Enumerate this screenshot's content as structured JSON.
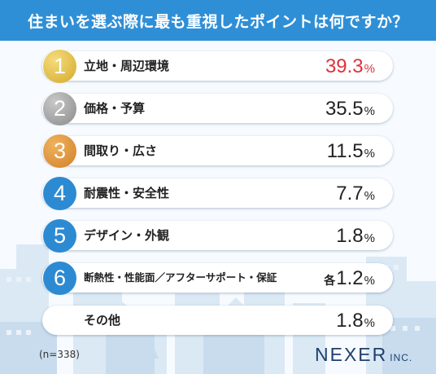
{
  "title": "住まいを選ぶ際に最も重視したポイントは何ですか？",
  "note": "(n=338)",
  "logo": {
    "main": "NEXER",
    "sub": "INC."
  },
  "colors": {
    "header": "#2f8fd6",
    "gold": "#e2b93a",
    "silver": "#8e8e8e",
    "bronze": "#d98a2c",
    "blue": "#2c8ad3",
    "highlight": "#e0303b"
  },
  "chart_data": {
    "type": "table",
    "title": "住まいを選ぶ際に最も重視したポイントは何ですか？",
    "unit": "%",
    "rows": [
      {
        "rank": "1",
        "label": "立地・周辺環境",
        "value": "39.3",
        "prefix": ""
      },
      {
        "rank": "2",
        "label": "価格・予算",
        "value": "35.5",
        "prefix": ""
      },
      {
        "rank": "3",
        "label": "間取り・広さ",
        "value": "11.5",
        "prefix": ""
      },
      {
        "rank": "4",
        "label": "耐震性・安全性",
        "value": "7.7",
        "prefix": ""
      },
      {
        "rank": "5",
        "label": "デザイン・外観",
        "value": "1.8",
        "prefix": ""
      },
      {
        "rank": "6",
        "label": "断熱性・性能面／アフターサポート・保証",
        "value": "1.2",
        "prefix": "各"
      },
      {
        "rank": "",
        "label": "その他",
        "value": "1.8",
        "prefix": ""
      }
    ]
  }
}
